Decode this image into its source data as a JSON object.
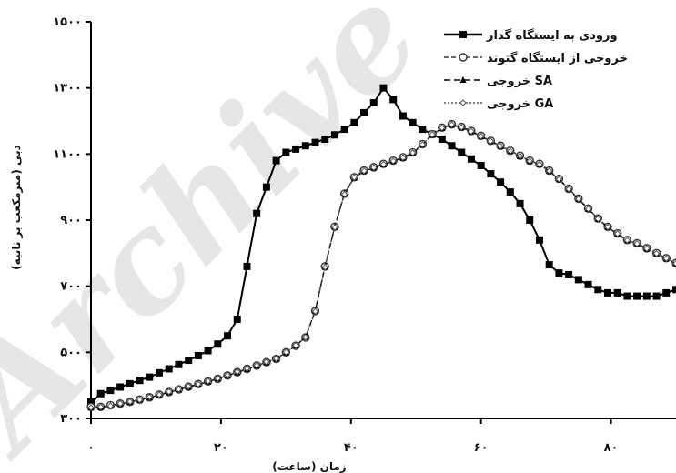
{
  "watermark": "Archive of SID",
  "chart_data": {
    "type": "line",
    "xlabel": "زمان (ساعت)",
    "ylabel": "دبی (مترمکعب بر ثانیه)",
    "xlim": [
      0,
      90
    ],
    "ylim": [
      300,
      1500
    ],
    "x_ticks": [
      0,
      20,
      40,
      60,
      80
    ],
    "x_tick_labels": [
      "۰",
      "۲۰",
      "۴۰",
      "۶۰",
      "۸۰"
    ],
    "y_ticks": [
      300,
      500,
      700,
      900,
      1100,
      1300,
      1500
    ],
    "y_tick_labels": [
      "۳۰۰",
      "۵۰۰",
      "۷۰۰",
      "۹۰۰",
      "۱۱۰۰",
      "۱۳۰۰",
      "۱۵۰۰"
    ],
    "legend_position": "top-right",
    "series": [
      {
        "name": "ورودی به ایستگاه گدار",
        "color": "#000000",
        "dash": "",
        "marker": "square",
        "x": [
          0,
          1.5,
          3,
          4.5,
          6,
          7.5,
          9,
          10.5,
          12,
          13.5,
          15,
          16.5,
          18,
          19.5,
          21,
          22.5,
          24,
          25.5,
          27,
          28.5,
          30,
          31.5,
          33,
          34.5,
          36,
          37.5,
          39,
          40.5,
          42,
          43.5,
          45,
          46.5,
          48,
          49.5,
          51,
          52.5,
          54,
          55.5,
          57,
          58.5,
          60,
          61.5,
          63,
          64.5,
          66,
          67.5,
          69,
          70.5,
          72,
          73.5,
          75,
          76.5,
          78,
          79.5,
          81,
          82.5,
          84,
          85.5,
          87,
          88.5,
          90
        ],
        "values": [
          350,
          375,
          385,
          395,
          405,
          415,
          425,
          438,
          450,
          463,
          476,
          490,
          505,
          525,
          550,
          600,
          760,
          920,
          1000,
          1080,
          1105,
          1115,
          1125,
          1135,
          1145,
          1158,
          1175,
          1195,
          1225,
          1255,
          1300,
          1265,
          1215,
          1195,
          1175,
          1160,
          1145,
          1125,
          1105,
          1085,
          1065,
          1040,
          1015,
          985,
          950,
          900,
          840,
          765,
          740,
          735,
          720,
          705,
          690,
          680,
          680,
          670,
          670,
          670,
          670,
          680,
          690
        ]
      },
      {
        "name": "خروجی از ایستگاه گتوند",
        "color": "#333333",
        "dash": "5,3",
        "marker": "circle",
        "x": [
          0,
          1.5,
          3,
          4.5,
          6,
          7.5,
          9,
          10.5,
          12,
          13.5,
          15,
          16.5,
          18,
          19.5,
          21,
          22.5,
          24,
          25.5,
          27,
          28.5,
          30,
          31.5,
          33,
          34.5,
          36,
          37.5,
          39,
          40.5,
          42,
          43.5,
          45,
          46.5,
          48,
          49.5,
          51,
          52.5,
          54,
          55.5,
          57,
          58.5,
          60,
          61.5,
          63,
          64.5,
          66,
          67.5,
          69,
          70.5,
          72,
          73.5,
          75,
          76.5,
          78,
          79.5,
          81,
          82.5,
          84,
          85.5,
          87,
          88.5,
          90
        ],
        "values": [
          335,
          335,
          340,
          345,
          350,
          357,
          364,
          372,
          380,
          388,
          396,
          404,
          412,
          420,
          430,
          440,
          450,
          460,
          470,
          480,
          500,
          520,
          545,
          625,
          760,
          880,
          980,
          1030,
          1050,
          1060,
          1070,
          1080,
          1090,
          1105,
          1130,
          1160,
          1180,
          1190,
          1182,
          1170,
          1155,
          1140,
          1125,
          1110,
          1095,
          1080,
          1070,
          1050,
          1025,
          995,
          965,
          935,
          905,
          880,
          860,
          840,
          830,
          815,
          800,
          785,
          770
        ]
      },
      {
        "name": "خروجی SA",
        "color": "#000000",
        "dash": "7,4",
        "marker": "triangle",
        "x": [
          0,
          1.5,
          3,
          4.5,
          6,
          7.5,
          9,
          10.5,
          12,
          13.5,
          15,
          16.5,
          18,
          19.5,
          21,
          22.5,
          24,
          25.5,
          27,
          28.5,
          30,
          31.5,
          33,
          34.5,
          36,
          37.5,
          39,
          40.5,
          42,
          43.5,
          45,
          46.5,
          48,
          49.5,
          51,
          52.5,
          54,
          55.5,
          57,
          58.5,
          60,
          61.5,
          63,
          64.5,
          66,
          67.5,
          69,
          70.5,
          72,
          73.5,
          75,
          76.5,
          78,
          79.5,
          81,
          82.5,
          84,
          85.5,
          87,
          88.5,
          90
        ],
        "values": [
          332,
          334,
          339,
          344,
          350,
          356,
          363,
          371,
          379,
          387,
          395,
          403,
          411,
          420,
          430,
          439,
          449,
          459,
          469,
          480,
          499,
          520,
          546,
          626,
          759,
          880,
          980,
          1028,
          1048,
          1058,
          1068,
          1078,
          1088,
          1103,
          1128,
          1158,
          1178,
          1188,
          1180,
          1168,
          1153,
          1138,
          1123,
          1108,
          1093,
          1078,
          1068,
          1048,
          1023,
          993,
          963,
          933,
          903,
          878,
          858,
          838,
          828,
          813,
          798,
          783,
          768
        ]
      },
      {
        "name": "خروجی GA",
        "color": "#555555",
        "dash": "2,2",
        "marker": "diamond",
        "x": [
          0,
          1.5,
          3,
          4.5,
          6,
          7.5,
          9,
          10.5,
          12,
          13.5,
          15,
          16.5,
          18,
          19.5,
          21,
          22.5,
          24,
          25.5,
          27,
          28.5,
          30,
          31.5,
          33,
          34.5,
          36,
          37.5,
          39,
          40.5,
          42,
          43.5,
          45,
          46.5,
          48,
          49.5,
          51,
          52.5,
          54,
          55.5,
          57,
          58.5,
          60,
          61.5,
          63,
          64.5,
          66,
          67.5,
          69,
          70.5,
          72,
          73.5,
          75,
          76.5,
          78,
          79.5,
          81,
          82.5,
          84,
          85.5,
          87,
          88.5,
          90
        ],
        "values": [
          333,
          335,
          338,
          345,
          351,
          356,
          365,
          372,
          381,
          388,
          397,
          404,
          413,
          421,
          431,
          441,
          451,
          461,
          471,
          481,
          501,
          521,
          546,
          624,
          758,
          878,
          978,
          1029,
          1049,
          1059,
          1069,
          1079,
          1089,
          1104,
          1129,
          1159,
          1179,
          1189,
          1181,
          1169,
          1154,
          1139,
          1124,
          1109,
          1094,
          1079,
          1069,
          1049,
          1024,
          994,
          964,
          934,
          904,
          879,
          859,
          839,
          829,
          814,
          799,
          784,
          769
        ]
      }
    ]
  }
}
